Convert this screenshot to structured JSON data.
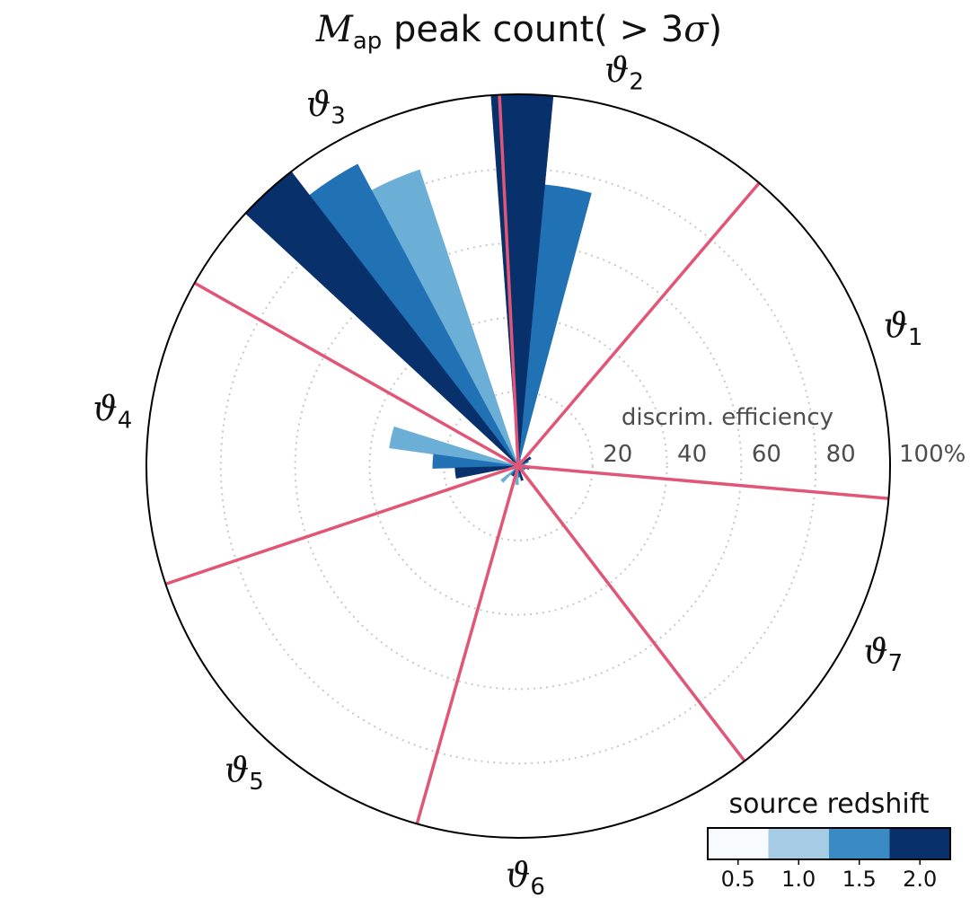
{
  "chart_data": {
    "type": "polar-bar",
    "title_prefix": "M",
    "title_subscript": "ap",
    "title_suffix": " peak count( > 3",
    "title_sigma": "σ",
    "title_close": ")",
    "radial_title": "discrim. efficiency",
    "radial_ticks": [
      {
        "value": 20,
        "label": "20"
      },
      {
        "value": 40,
        "label": "40"
      },
      {
        "value": 60,
        "label": "60"
      },
      {
        "value": 80,
        "label": "80"
      },
      {
        "value": 100,
        "label": "100%"
      }
    ],
    "rlim": [
      0,
      100
    ],
    "grid": true,
    "sectors": [
      {
        "symbol": "ϑ",
        "sub": "1",
        "center_deg": 20
      },
      {
        "symbol": "ϑ",
        "sub": "2",
        "center_deg": 75
      },
      {
        "symbol": "ϑ",
        "sub": "3",
        "center_deg": 118
      },
      {
        "symbol": "ϑ",
        "sub": "4",
        "center_deg": 172
      },
      {
        "symbol": "ϑ",
        "sub": "5",
        "center_deg": 228
      },
      {
        "symbol": "ϑ",
        "sub": "6",
        "center_deg": 271
      },
      {
        "symbol": "ϑ",
        "sub": "7",
        "center_deg": 333
      }
    ],
    "sector_boundaries_deg": [
      49.6,
      92.9,
      150.5,
      198.5,
      254.2,
      307.5,
      355
    ],
    "series": [
      {
        "name": "0.5",
        "color": "#f7fbff",
        "values": [
          0,
          2,
          0,
          0,
          1,
          0,
          1
        ]
      },
      {
        "name": "1.0",
        "color": "#6baed6",
        "values": [
          2,
          2,
          84,
          35,
          6,
          5,
          2
        ]
      },
      {
        "name": "1.5",
        "color": "#2171b5",
        "values": [
          3,
          76,
          92,
          23,
          3,
          3,
          2
        ]
      },
      {
        "name": "2.0",
        "color": "#08306b",
        "values": [
          4,
          100,
          100,
          17,
          3,
          4,
          3
        ]
      }
    ],
    "legend": {
      "title": "source redshift",
      "labels": [
        "0.5",
        "1.0",
        "1.5",
        "2.0"
      ],
      "colors": [
        "#f7fbff",
        "#a6cbe4",
        "#3a8ac3",
        "#08306b"
      ],
      "placement": "bottom-right"
    }
  }
}
